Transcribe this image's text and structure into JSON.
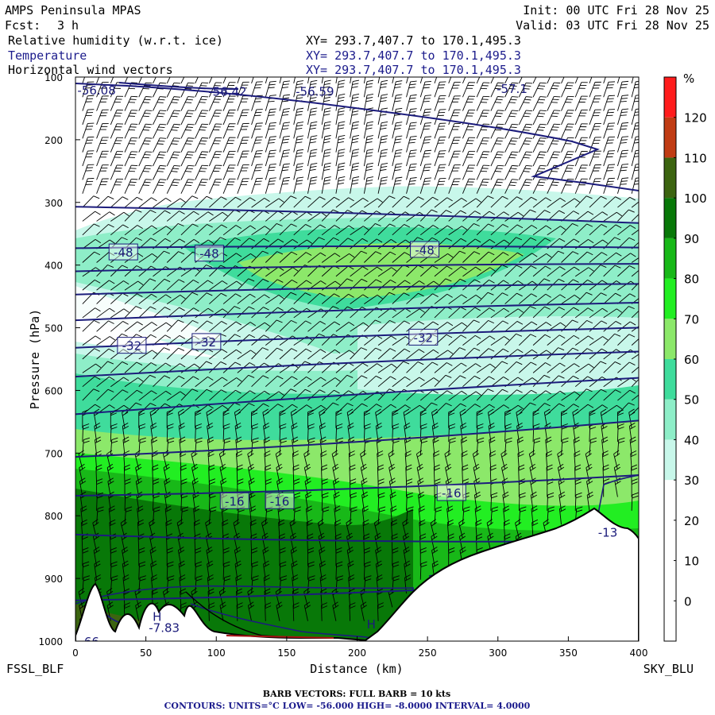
{
  "header": {
    "model": "AMPS Peninsula MPAS",
    "init": "Init: 00 UTC Fri 28 Nov 25",
    "fcst_label": "Fcst:",
    "fcst_value": "3 h",
    "valid": "Valid: 03 UTC Fri 28 Nov 25",
    "fields": [
      {
        "name": "Relative humidity (w.r.t. ice)",
        "xy": "XY= 293.7,407.7 to 170.1,495.3",
        "color": "#000000"
      },
      {
        "name": "Temperature",
        "xy": "XY= 293.7,407.7 to 170.1,495.3",
        "color": "#1c1c8c"
      },
      {
        "name": "Horizontal wind vectors",
        "xy": "XY= 293.7,407.7 to 170.1,495.3",
        "color": "#000000"
      }
    ]
  },
  "chart_data": {
    "type": "heatmap",
    "xlabel": "Distance (km)",
    "ylabel": "Pressure (hPa)",
    "xlim": [
      0,
      400
    ],
    "ylim": [
      1000,
      100
    ],
    "x_ticks": [
      0,
      50,
      100,
      150,
      200,
      250,
      300,
      350,
      400
    ],
    "y_ticks": [
      100,
      200,
      300,
      400,
      500,
      600,
      700,
      800,
      900,
      1000
    ],
    "left_endpoint": "FSSL_BLF",
    "right_endpoint": "SKY_BLU",
    "colorbar": {
      "unit": "%",
      "levels": [
        0,
        10,
        20,
        30,
        40,
        50,
        60,
        70,
        80,
        90,
        100,
        110,
        120
      ],
      "colors": [
        "#ffffff",
        "#ffffff",
        "#ffffff",
        "#ffffff",
        "#c8f7ea",
        "#8eeec8",
        "#3fdc9c",
        "#8ce86a",
        "#22ee22",
        "#18b818",
        "#087808",
        "#3c6410",
        "#c03c14",
        "#ff1c1c"
      ]
    },
    "temperature_labels": [
      {
        "text": "-56.08",
        "x": 15,
        "p": 120
      },
      {
        "text": "-56.42",
        "x": 108,
        "p": 122
      },
      {
        "text": "-56.59",
        "x": 170,
        "p": 122
      },
      {
        "text": "-57.1",
        "x": 310,
        "p": 118
      },
      {
        "text": "-48",
        "x": 34,
        "p": 379
      },
      {
        "text": "-48",
        "x": 95,
        "p": 381
      },
      {
        "text": "-48",
        "x": 248,
        "p": 375
      },
      {
        "text": "-32",
        "x": 40,
        "p": 528
      },
      {
        "text": "-32",
        "x": 93,
        "p": 522
      },
      {
        "text": "-32",
        "x": 247,
        "p": 515
      },
      {
        "text": "-16",
        "x": 113,
        "p": 776
      },
      {
        "text": "-16",
        "x": 145,
        "p": 776
      },
      {
        "text": "-16",
        "x": 267,
        "p": 763
      },
      {
        "text": "-13",
        "x": 378,
        "p": 826
      },
      {
        "text": "-7.83",
        "x": 63,
        "p": 978
      },
      {
        "text": "-66",
        "x": 10,
        "p": 1000
      },
      {
        "text": "H",
        "x": 58,
        "p": 960
      },
      {
        "text": "H",
        "x": 210,
        "p": 972
      }
    ],
    "isotherms_pressure": [
      [
        307,
        333
      ],
      [
        373,
        372
      ],
      [
        410,
        398
      ],
      [
        447,
        430
      ],
      [
        488,
        460
      ],
      [
        532,
        500
      ],
      [
        578,
        538
      ],
      [
        638,
        580
      ],
      [
        706,
        648
      ],
      [
        768,
        735
      ],
      [
        830,
        840
      ],
      [
        935,
        900
      ]
    ],
    "terrain_pressure": [
      [
        0,
        1000
      ],
      [
        50,
        990
      ],
      [
        100,
        990
      ],
      [
        150,
        995
      ],
      [
        210,
        995
      ],
      [
        250,
        920
      ],
      [
        300,
        880
      ],
      [
        340,
        845
      ],
      [
        360,
        820
      ],
      [
        375,
        780
      ],
      [
        390,
        805
      ],
      [
        400,
        835
      ]
    ],
    "barb_spacing_km": 10
  },
  "footer": {
    "barb_text": "BARB VECTORS:  FULL BARB = 10 kts",
    "contours_text": "CONTOURS:  UNITS=°C  LOW= -56.000      HIGH= -8.0000      INTERVAL=   4.0000"
  }
}
